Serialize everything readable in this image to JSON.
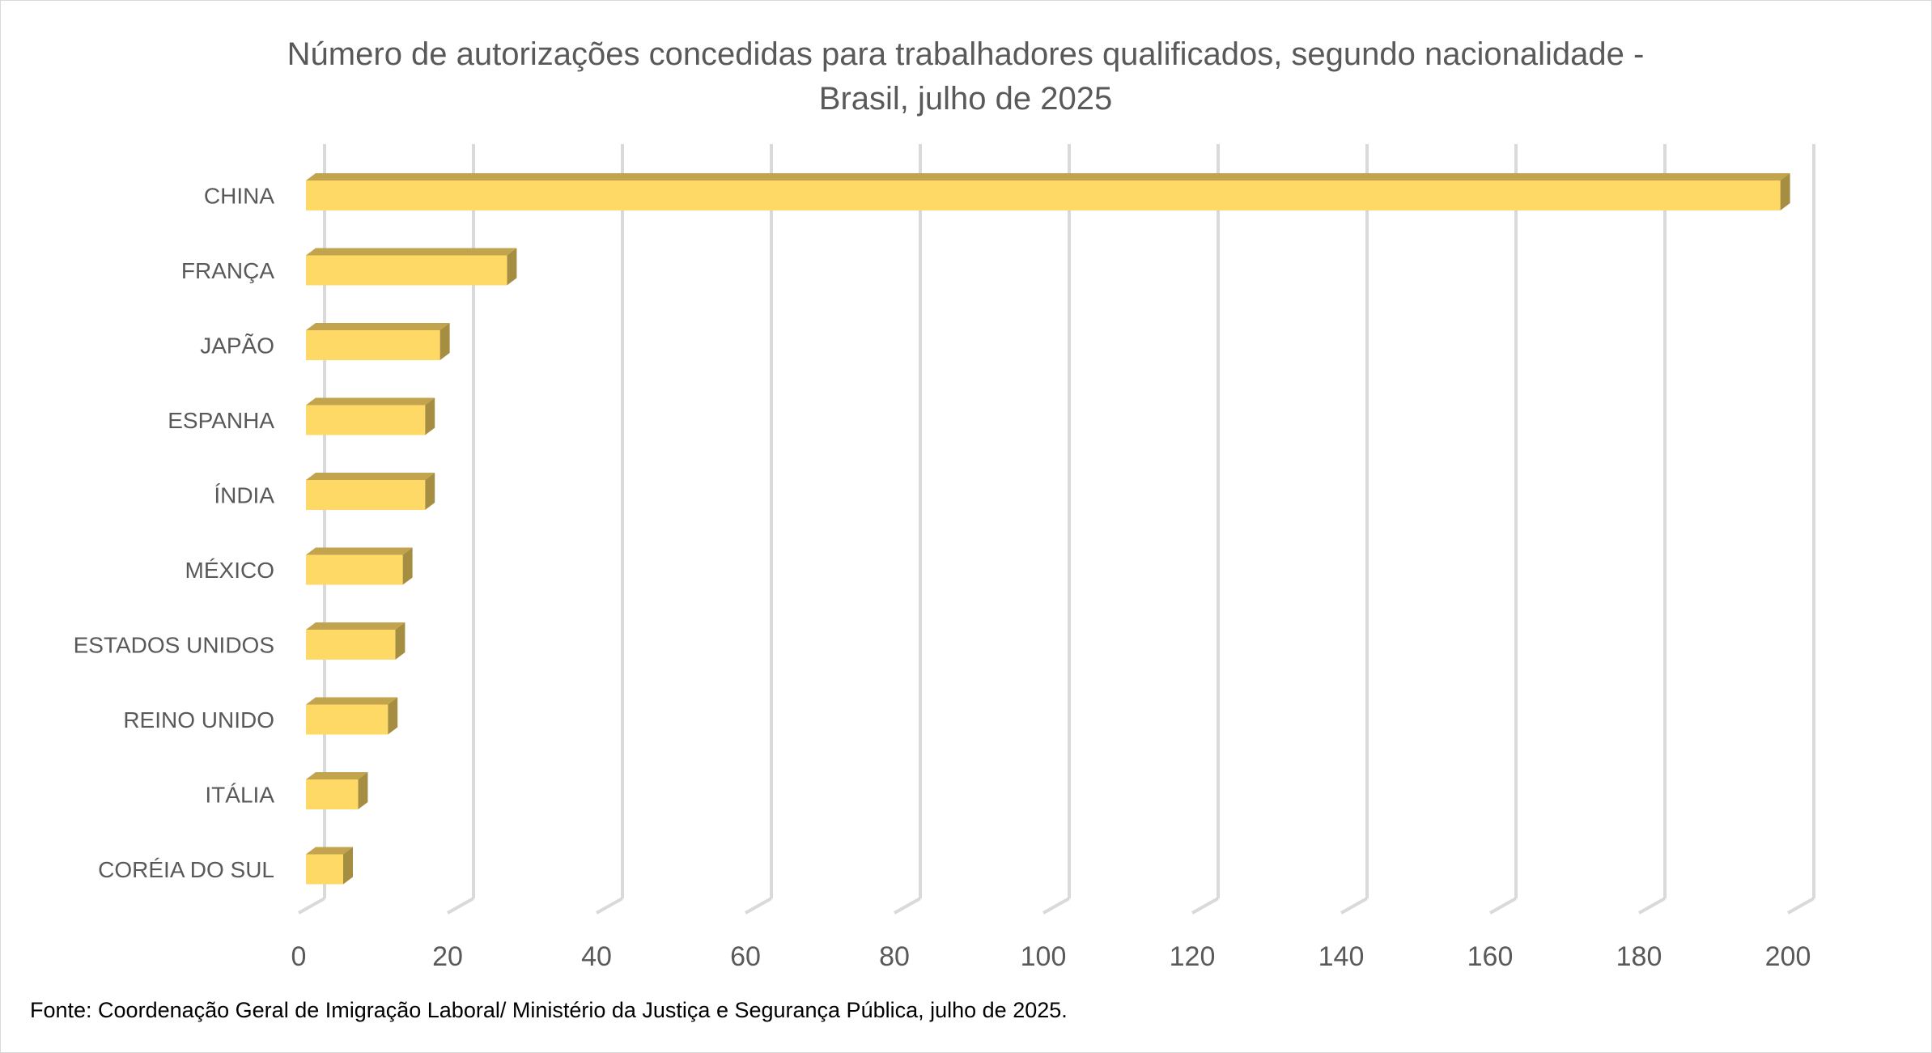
{
  "chart_data": {
    "type": "bar",
    "orientation": "horizontal",
    "style": "3d",
    "title_lines": [
      "Número de autorizações concedidas para trabalhadores qualificados, segundo nacionalidade -",
      "Brasil, julho de 2025"
    ],
    "categories": [
      "CHINA",
      "FRANÇA",
      "JAPÃO",
      "ESPANHA",
      "ÍNDIA",
      "MÉXICO",
      "ESTADOS UNIDOS",
      "REINO UNIDO",
      "ITÁLIA",
      "CORÉIA DO SUL"
    ],
    "values": [
      198,
      27,
      18,
      16,
      16,
      13,
      12,
      11,
      7,
      5
    ],
    "xlim": [
      0,
      200
    ],
    "xticks": [
      "0",
      "20",
      "40",
      "60",
      "80",
      "100",
      "120",
      "140",
      "160",
      "180",
      "200"
    ],
    "grid": true,
    "legend": "none",
    "colors": {
      "bar_front": "#FFD966",
      "bar_top": "#C3A44E",
      "bar_side": "#A58D41",
      "grid": "#D9D9D9",
      "text": "#595959"
    }
  },
  "source": "Fonte: Coordenação Geral de Imigração Laboral/ Ministério da Justiça e Segurança Pública,  julho de 2025."
}
